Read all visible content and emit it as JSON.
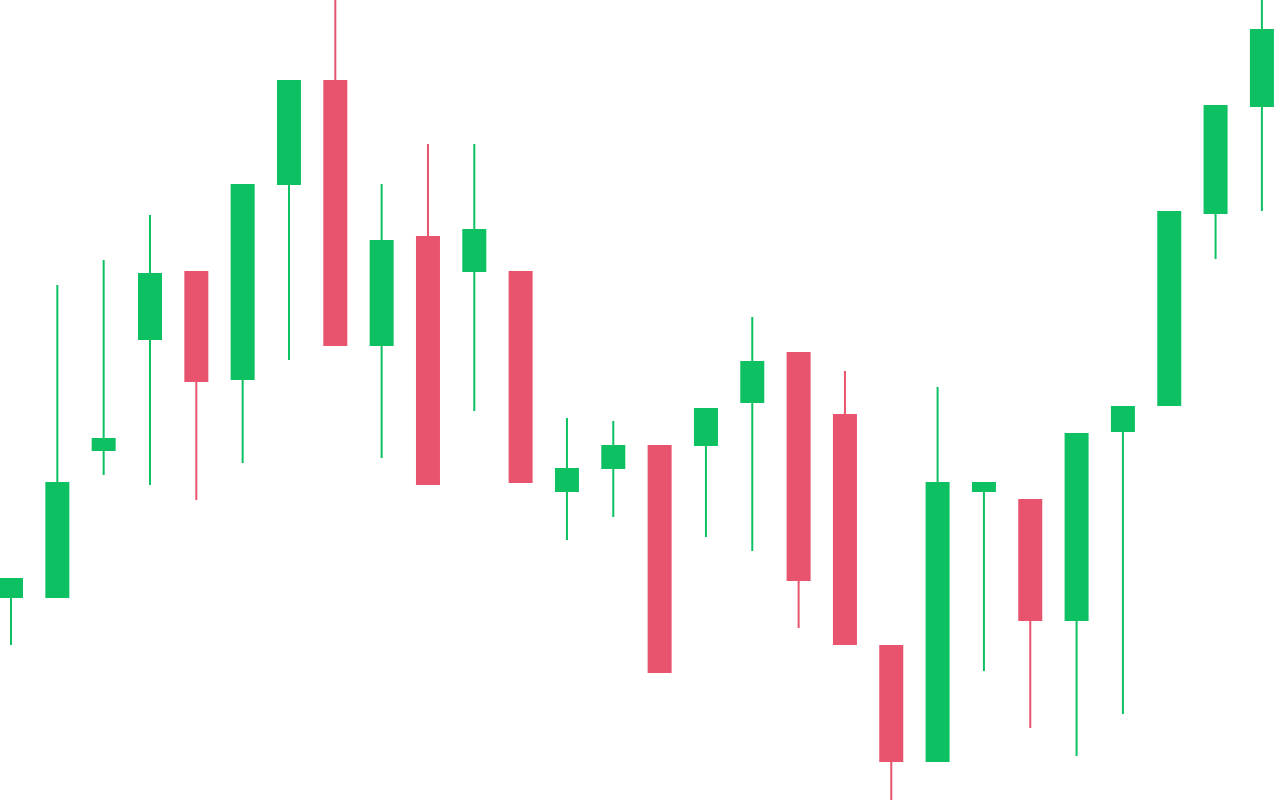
{
  "chart_data": {
    "type": "candlestick",
    "open": [
      20.2,
      20.2,
      34.9,
      46.0,
      52.9,
      42.0,
      61.5,
      72.0,
      45.4,
      56.4,
      52.8,
      52.9,
      30.8,
      33.1,
      35.5,
      35.4,
      39.7,
      44.8,
      38.6,
      15.5,
      3.8,
      30.8,
      30.1,
      17.9,
      36.8,
      39.4,
      58.6,
      69.3
    ],
    "high": [
      22.2,
      51.5,
      54.0,
      58.5,
      52.9,
      61.6,
      72.0,
      80.0,
      61.6,
      65.6,
      65.6,
      52.9,
      38.2,
      37.9,
      35.5,
      39.2,
      48.3,
      44.8,
      42.9,
      15.5,
      41.3,
      31.8,
      30.1,
      36.7,
      39.4,
      58.9,
      69.5,
      80.0
    ],
    "low": [
      15.5,
      20.2,
      32.5,
      31.5,
      30.0,
      33.7,
      44.0,
      45.4,
      34.2,
      31.5,
      38.9,
      31.7,
      26.0,
      28.3,
      12.7,
      26.3,
      24.9,
      17.2,
      15.5,
      0.0,
      3.8,
      12.9,
      7.2,
      4.4,
      8.6,
      39.4,
      54.1,
      58.9
    ],
    "close": [
      22.2,
      31.8,
      36.2,
      52.7,
      41.8,
      61.6,
      72.0,
      45.4,
      56.0,
      31.5,
      57.1,
      31.7,
      33.2,
      35.5,
      12.7,
      39.2,
      43.9,
      21.9,
      15.5,
      3.8,
      31.8,
      31.8,
      17.9,
      36.7,
      39.4,
      58.9,
      69.5,
      77.1
    ],
    "up_color": "#0dc162",
    "down_color": "#e8546d",
    "ylim": [
      0,
      80
    ]
  }
}
